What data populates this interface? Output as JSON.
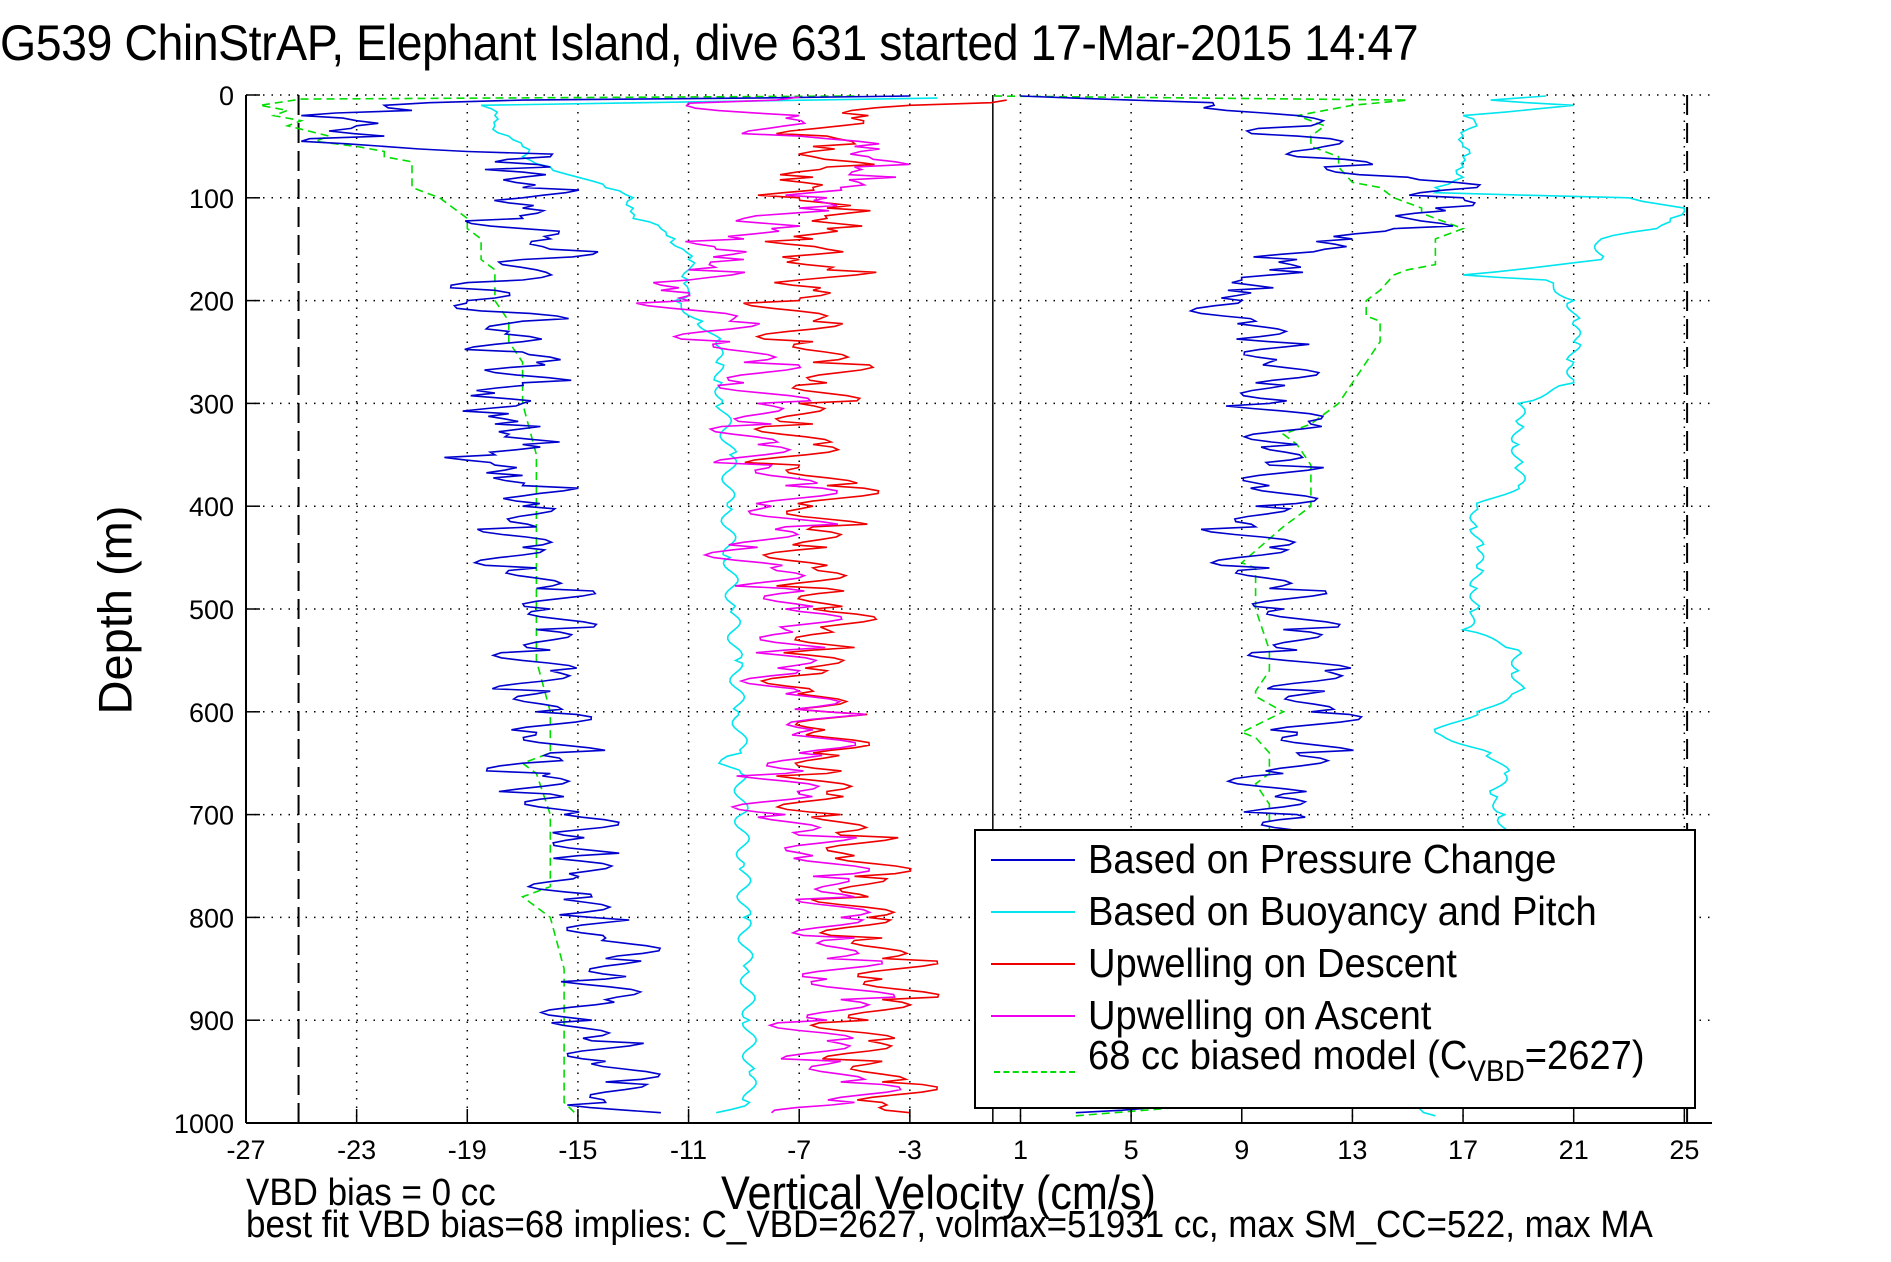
{
  "title": "G539 ChinStrAP, Elephant Island, dive 631 started 17-Mar-2015 14:47",
  "footer": {
    "line1": "VBD bias = 0 cc",
    "line2": "best fit VBD bias=68 implies: C_VBD=2627, volmax=51931 cc, max SM_CC=522, max MA"
  },
  "colors": {
    "pressure": "#0000cc",
    "buoyancy": "#00e5ee",
    "descent": "#ee0000",
    "ascent": "#ee00ee",
    "model": "#00dd00"
  },
  "chart_data": {
    "type": "line",
    "title": "G539 ChinStrAP, Elephant Island, dive 631 started 17-Mar-2015 14:47",
    "xlabel": "Vertical Velocity (cm/s)",
    "ylabel": "Depth (m)",
    "xlim": [
      -27,
      26
    ],
    "ylim": [
      0,
      1000
    ],
    "y_reversed": true,
    "grid": true,
    "legend_position": "bottom-right",
    "xticks": [
      -27,
      -23,
      -19,
      -15,
      -11,
      -7,
      -3,
      1,
      5,
      9,
      13,
      17,
      21,
      25
    ],
    "yticks": [
      0,
      100,
      200,
      300,
      400,
      500,
      600,
      700,
      800,
      900,
      1000
    ],
    "reference_lines": [
      {
        "x": 0,
        "style": "solid"
      },
      {
        "x": -25.1,
        "style": "dashed"
      },
      {
        "x": 25.1,
        "style": "dashed"
      }
    ],
    "legend": [
      {
        "label": "Based on Pressure Change",
        "key": "pressure",
        "style": "solid"
      },
      {
        "label": "Based on Buoyancy and Pitch",
        "key": "buoyancy",
        "style": "solid"
      },
      {
        "label": "Upwelling on Descent",
        "key": "descent",
        "style": "solid"
      },
      {
        "label": "Upwelling on Ascent",
        "key": "ascent",
        "style": "solid"
      },
      {
        "label_main": "68 cc biased model (C",
        "label_sub": "VBD",
        "label_tail": "=2627)",
        "key": "model",
        "style": "dashed"
      }
    ],
    "series": [
      {
        "name": "Based on Pressure Change (descent)",
        "key": "pressure",
        "depth": [
          1,
          5,
          10,
          15,
          20,
          25,
          30,
          35,
          40,
          45,
          50,
          55,
          60,
          65,
          70,
          75,
          80,
          90,
          100,
          110,
          120,
          130,
          140,
          150,
          160,
          170,
          180,
          190,
          200,
          210,
          220,
          230,
          240,
          250,
          260,
          270,
          280,
          290,
          300,
          310,
          320,
          330,
          340,
          350,
          360,
          370,
          380,
          390,
          400,
          420,
          440,
          460,
          480,
          500,
          520,
          540,
          560,
          580,
          600,
          620,
          640,
          650,
          660,
          680,
          700,
          720,
          740,
          760,
          780,
          800,
          820,
          840,
          860,
          880,
          900,
          920,
          940,
          960,
          980,
          990
        ],
        "values": [
          -3,
          -17,
          -22,
          -21,
          -25,
          -23,
          -23,
          -24,
          -22,
          -25,
          -22,
          -19,
          -16,
          -18,
          -16,
          -17,
          -17,
          -17,
          -17,
          -17,
          -17,
          -17,
          -16,
          -16,
          -17,
          -16.5,
          -17,
          -18,
          -19,
          -18.5,
          -17,
          -17.5,
          -17,
          -17,
          -16.5,
          -18,
          -17,
          -18,
          -17,
          -17.5,
          -18,
          -17.5,
          -17,
          -18,
          -18,
          -17,
          -17,
          -17,
          -17,
          -16.5,
          -17,
          -16.5,
          -16.5,
          -16,
          -16.5,
          -16,
          -16,
          -16,
          -16.5,
          -16.5,
          -16,
          -17,
          -16,
          -16,
          -15.5,
          -15.5,
          -15,
          -15,
          -14.5,
          -14.5,
          -14,
          -14,
          -14,
          -14,
          -14.5,
          -14.5,
          -14,
          -14,
          -14,
          -12
        ]
      },
      {
        "name": "Based on Pressure Change (ascent)",
        "key": "pressure",
        "depth": [
          990,
          970,
          950,
          930,
          900,
          880,
          860,
          840,
          820,
          800,
          780,
          760,
          740,
          720,
          700,
          680,
          660,
          640,
          620,
          600,
          580,
          560,
          540,
          520,
          500,
          480,
          460,
          440,
          420,
          400,
          380,
          360,
          340,
          320,
          300,
          280,
          260,
          240,
          220,
          200,
          190,
          180,
          170,
          160,
          150,
          140,
          130,
          120,
          110,
          100,
          90,
          80,
          70,
          60,
          50,
          40,
          30,
          20,
          10,
          5,
          1
        ],
        "values": [
          3,
          7,
          9,
          9.5,
          10,
          10.5,
          11,
          11,
          10.5,
          10.5,
          11,
          10.5,
          10.5,
          11,
          11,
          10.5,
          10.5,
          11,
          11,
          11.5,
          12,
          12,
          11,
          10.5,
          10.5,
          10,
          10,
          10,
          9.5,
          9.5,
          10,
          10,
          11,
          11.5,
          10,
          9.5,
          10,
          10,
          9.5,
          9,
          8.5,
          9,
          10,
          11,
          12,
          13,
          14.5,
          15,
          16,
          17,
          17.5,
          15,
          12,
          11,
          12,
          11,
          11.5,
          11,
          8,
          5,
          1
        ]
      },
      {
        "name": "Based on Buoyancy and Pitch (descent)",
        "key": "buoyancy",
        "depth": [
          3,
          10,
          20,
          30,
          40,
          50,
          60,
          70,
          80,
          90,
          100,
          110,
          120,
          130,
          140,
          150,
          160,
          170,
          180,
          190,
          200,
          220,
          240,
          260,
          280,
          300,
          350,
          400,
          450,
          500,
          550,
          600,
          640,
          650,
          660,
          700,
          750,
          800,
          850,
          900,
          950,
          980,
          990
        ],
        "values": [
          -2,
          -18.5,
          -18,
          -18,
          -17.5,
          -17,
          -17,
          -16,
          -15,
          -14,
          -13,
          -13,
          -13,
          -12,
          -11.5,
          -11.2,
          -11,
          -11,
          -11,
          -11,
          -11.5,
          -10.5,
          -10,
          -10,
          -9.8,
          -9.8,
          -9.5,
          -9.6,
          -9.5,
          -9.4,
          -9.3,
          -9.2,
          -9.1,
          -9.9,
          -9.1,
          -9.1,
          -9,
          -9,
          -8.9,
          -8.8,
          -8.8,
          -8.8,
          -10
        ]
      },
      {
        "name": "Based on Buoyancy and Pitch (ascent)",
        "key": "buoyancy",
        "depth": [
          993,
          980,
          960,
          900,
          860,
          830,
          800,
          780,
          740,
          720,
          700,
          680,
          660,
          640,
          620,
          600,
          580,
          560,
          540,
          520,
          500,
          480,
          460,
          440,
          420,
          400,
          380,
          360,
          340,
          320,
          300,
          280,
          260,
          240,
          220,
          200,
          180,
          175,
          160,
          140,
          130,
          120,
          110,
          100,
          95,
          90,
          80,
          70,
          60,
          50,
          40,
          30,
          20,
          10,
          5,
          1
        ],
        "values": [
          16,
          15,
          15.5,
          16,
          16,
          16,
          16.5,
          17,
          18,
          18.5,
          18.5,
          18,
          18.5,
          18,
          16,
          17.5,
          19,
          19,
          19,
          17,
          17.5,
          17.5,
          17.5,
          17.5,
          17.5,
          17.5,
          19,
          19,
          19,
          19,
          19,
          21,
          21,
          21,
          21,
          21,
          20,
          17,
          22,
          22,
          24,
          24.5,
          25,
          23,
          16,
          16,
          17,
          17,
          17,
          17,
          17,
          17.5,
          17,
          21,
          18,
          20
        ]
      },
      {
        "name": "Upwelling on Descent",
        "key": "descent",
        "depth": [
          5,
          10,
          20,
          30,
          40,
          50,
          60,
          70,
          80,
          90,
          100,
          110,
          120,
          130,
          140,
          150,
          160,
          170,
          180,
          190,
          200,
          220,
          240,
          260,
          280,
          300,
          320,
          340,
          360,
          380,
          400,
          420,
          440,
          460,
          480,
          500,
          520,
          540,
          560,
          580,
          600,
          620,
          640,
          660,
          680,
          700,
          720,
          740,
          760,
          780,
          800,
          820,
          840,
          860,
          880,
          900,
          920,
          940,
          960,
          980,
          990
        ],
        "values": [
          0.5,
          -3,
          -4.5,
          -5.5,
          -6,
          -6.5,
          -6.5,
          -6,
          -6.5,
          -6.5,
          -7,
          -6,
          -6,
          -6,
          -6.5,
          -6,
          -7,
          -6,
          -7,
          -6.5,
          -7,
          -6.5,
          -6.5,
          -6.5,
          -6,
          -7,
          -6.5,
          -6.5,
          -7,
          -6,
          -6.5,
          -6.5,
          -6,
          -6.5,
          -6,
          -6.5,
          -6,
          -6.5,
          -6,
          -6.5,
          -6,
          -6.5,
          -6.5,
          -6,
          -6,
          -5.5,
          -5.5,
          -5,
          -5,
          -4.5,
          -4.5,
          -4,
          -4,
          -4,
          -4,
          -4.5,
          -4.5,
          -4,
          -4,
          -4,
          -3
        ]
      },
      {
        "name": "Upwelling on Ascent",
        "key": "ascent",
        "depth": [
          2,
          8,
          20,
          30,
          40,
          50,
          60,
          70,
          80,
          90,
          100,
          110,
          120,
          130,
          140,
          150,
          160,
          170,
          180,
          190,
          200,
          220,
          240,
          260,
          280,
          300,
          320,
          340,
          360,
          380,
          400,
          420,
          440,
          460,
          480,
          500,
          520,
          540,
          560,
          580,
          600,
          620,
          640,
          660,
          680,
          700,
          720,
          740,
          760,
          780,
          800,
          820,
          840,
          860,
          880,
          900,
          920,
          940,
          960,
          980,
          990
        ],
        "values": [
          -7,
          -11,
          -7,
          -7.5,
          -7,
          -5,
          -4.5,
          -5,
          -3.5,
          -5.5,
          -6,
          -7,
          -9,
          -8,
          -9,
          -10,
          -9,
          -11,
          -11,
          -12,
          -11,
          -9.5,
          -9.5,
          -9,
          -9,
          -8.5,
          -8,
          -8.5,
          -8,
          -7.5,
          -8,
          -7.5,
          -8.5,
          -8,
          -7.5,
          -7.5,
          -7.5,
          -7.5,
          -7,
          -7,
          -6,
          -7,
          -7,
          -7.5,
          -7,
          -7.5,
          -7,
          -6.5,
          -6.5,
          -5,
          -5.5,
          -5,
          -6,
          -6,
          -5.5,
          -6,
          -6,
          -5.5,
          -5.5,
          -5,
          -8
        ]
      },
      {
        "name": "68 cc biased model (descent)",
        "key": "model",
        "depth": [
          1,
          4,
          10,
          15,
          20,
          25,
          30,
          40,
          45,
          50,
          55,
          60,
          65,
          70,
          80,
          90,
          100,
          110,
          120,
          130,
          140,
          150,
          160,
          170,
          180,
          200,
          220,
          240,
          260,
          280,
          300,
          350,
          400,
          450,
          500,
          550,
          600,
          640,
          650,
          660,
          700,
          750,
          770,
          780,
          800,
          850,
          900,
          950,
          980,
          993
        ],
        "values": [
          -5,
          -25,
          -26.5,
          -25.5,
          -26,
          -25,
          -25.5,
          -24,
          -24.5,
          -23,
          -22,
          -22,
          -21,
          -21,
          -21,
          -21,
          -20,
          -19.5,
          -19,
          -19,
          -18.5,
          -18.5,
          -18.5,
          -18,
          -18,
          -18,
          -17.5,
          -17.5,
          -17,
          -17,
          -17,
          -16.5,
          -16.5,
          -16.5,
          -16.5,
          -16.5,
          -16,
          -16,
          -17,
          -16.5,
          -16,
          -16,
          -16,
          -17,
          -16,
          -15.5,
          -15.5,
          -15.5,
          -15.5,
          -15
        ]
      },
      {
        "name": "68 cc biased model (ascent)",
        "key": "model",
        "depth": [
          993,
          980,
          950,
          900,
          850,
          800,
          770,
          765,
          730,
          700,
          690,
          670,
          660,
          640,
          625,
          620,
          600,
          585,
          580,
          560,
          540,
          500,
          460,
          455,
          420,
          400,
          380,
          360,
          340,
          330,
          320,
          300,
          280,
          260,
          240,
          220,
          215,
          200,
          190,
          175,
          170,
          165,
          150,
          140,
          130,
          125,
          120,
          115,
          110,
          100,
          90,
          85,
          70,
          60,
          50,
          40,
          30,
          20,
          10,
          5,
          1
        ],
        "values": [
          3,
          9,
          10.5,
          11,
          11,
          11,
          11,
          10,
          10,
          10,
          10,
          9.5,
          10,
          10,
          9.5,
          9,
          10.5,
          9.5,
          9.5,
          10,
          10,
          9.5,
          9.5,
          9,
          10.5,
          11.5,
          11.5,
          11.5,
          11,
          10.5,
          11.5,
          12.5,
          13,
          13.5,
          14,
          14,
          13.5,
          13.5,
          14,
          14.5,
          15,
          16,
          16,
          16,
          17,
          16.5,
          16,
          15.5,
          15.5,
          14.5,
          14,
          13,
          12.5,
          12.5,
          11.5,
          11.5,
          12,
          11,
          13,
          15,
          0
        ]
      }
    ]
  }
}
